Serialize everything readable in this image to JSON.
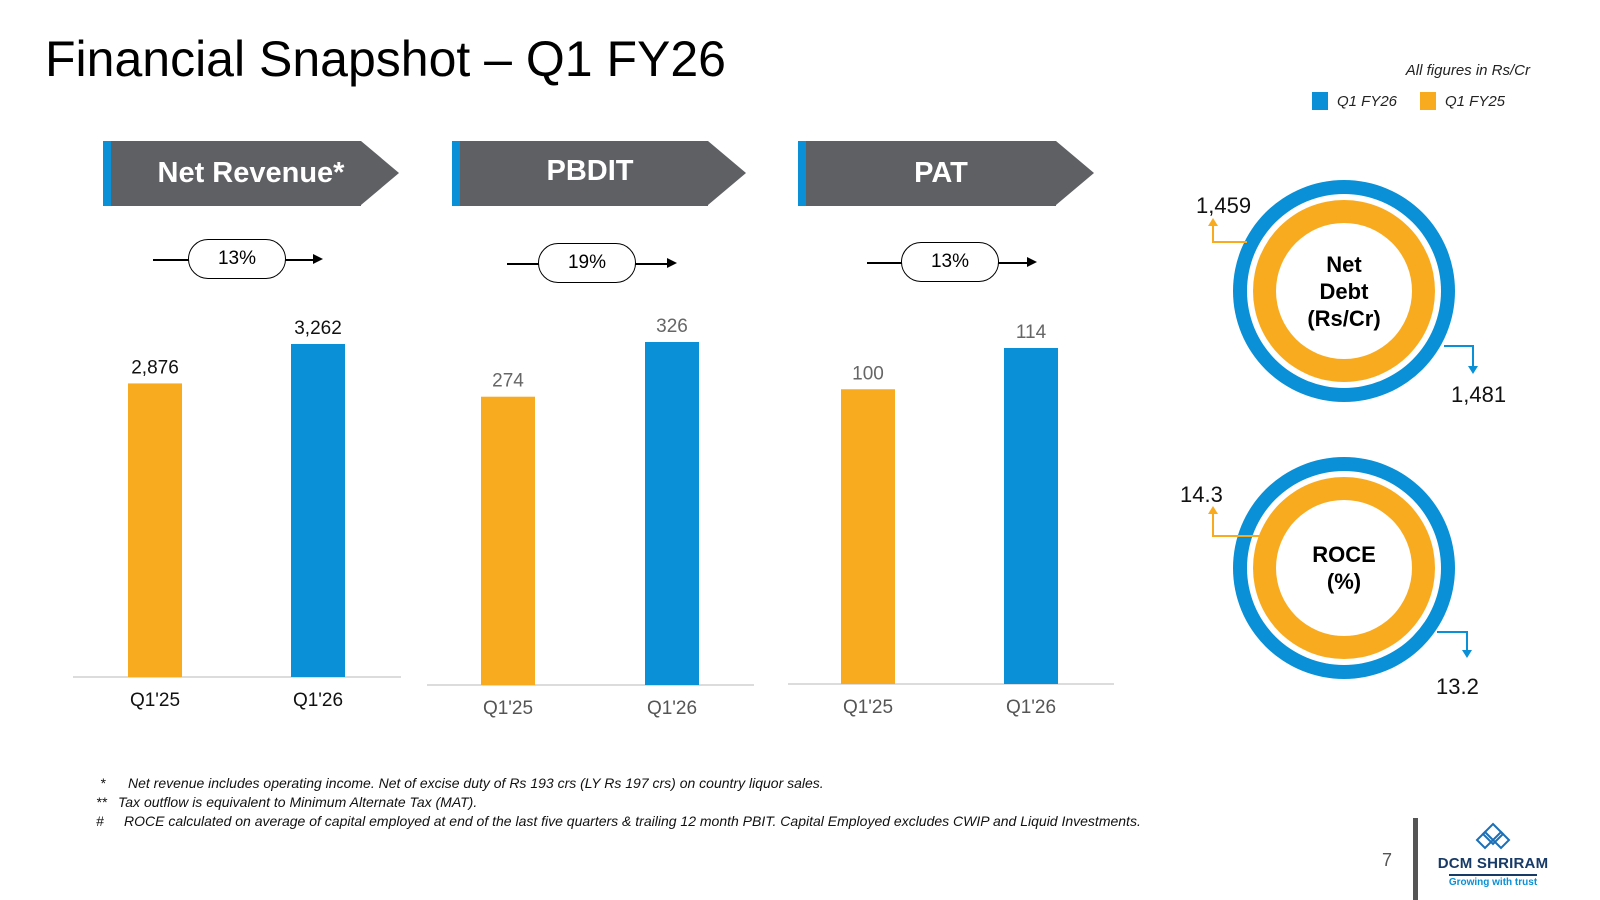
{
  "title": "Financial Snapshot – Q1 FY26",
  "units_note": "All figures in Rs/Cr",
  "legend": [
    {
      "label": "Q1 FY26",
      "color": "#0a90d6"
    },
    {
      "label": "Q1 FY25",
      "color": "#f9ab1f"
    }
  ],
  "colors": {
    "fy25": "#f9ab1f",
    "fy26": "#0a90d6",
    "banner": "#5f6063"
  },
  "panels": [
    {
      "heading": "Net Revenue*",
      "growth": "13%"
    },
    {
      "heading": "PBDIT",
      "growth": "19%"
    },
    {
      "heading": "PAT",
      "growth": "13%"
    }
  ],
  "chart_data": [
    {
      "type": "bar",
      "title": "Net Revenue*",
      "categories": [
        "Q1'25",
        "Q1'26"
      ],
      "values": [
        2876,
        3262
      ],
      "value_labels": [
        "2,876",
        "3,262"
      ],
      "growth": "13%"
    },
    {
      "type": "bar",
      "title": "PBDIT",
      "categories": [
        "Q1'25",
        "Q1'26"
      ],
      "values": [
        274,
        326
      ],
      "value_labels": [
        "274",
        "326"
      ],
      "growth": "19%"
    },
    {
      "type": "bar",
      "title": "PAT",
      "categories": [
        "Q1'25",
        "Q1'26"
      ],
      "values": [
        100,
        114
      ],
      "value_labels": [
        "100",
        "114"
      ],
      "growth": "13%"
    }
  ],
  "kpis": [
    {
      "label_line1": "Net",
      "label_line2": "Debt",
      "label_line3": "(Rs/Cr)",
      "fy25": "1,459",
      "fy26": "1,481"
    },
    {
      "label_line1": "ROCE",
      "label_line2": "(%)",
      "fy25": "14.3",
      "fy26": "13.2"
    }
  ],
  "footnotes": [
    {
      "symbol": "*",
      "text": "Net revenue includes operating income. Net of excise duty of Rs 193 crs (LY Rs 197 crs) on country liquor sales."
    },
    {
      "symbol": "**",
      "text": "Tax outflow is equivalent to Minimum Alternate Tax (MAT)."
    },
    {
      "symbol": "#",
      "text": "ROCE calculated on average of capital employed at end of the last five quarters & trailing 12 month PBIT. Capital Employed excludes CWIP and Liquid Investments."
    }
  ],
  "page_number": "7",
  "logo": {
    "name": "DCM SHRIRAM",
    "tagline": "Growing with trust"
  }
}
